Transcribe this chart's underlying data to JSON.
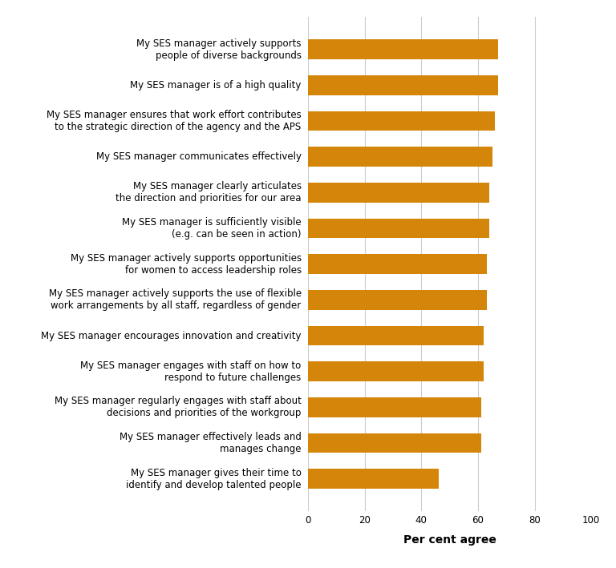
{
  "categories": [
    "My SES manager gives their time to\nidentify and develop talented people",
    "My SES manager effectively leads and\nmanages change",
    "My SES manager regularly engages with staff about\ndecisions and priorities of the workgroup",
    "My SES manager engages with staff on how to\nrespond to future challenges",
    "My SES manager encourages innovation and creativity",
    "My SES manager actively supports the use of flexible\nwork arrangements by all staff, regardless of gender",
    "My SES manager actively supports opportunities\nfor women to access leadership roles",
    "My SES manager is sufficiently visible\n(e.g. can be seen in action)",
    "My SES manager clearly articulates\nthe direction and priorities for our area",
    "My SES manager communicates effectively",
    "My SES manager ensures that work effort contributes\nto the strategic direction of the agency and the APS",
    "My SES manager is of a high quality",
    "My SES manager actively supports\npeople of diverse backgrounds"
  ],
  "values": [
    46,
    61,
    61,
    62,
    62,
    63,
    63,
    64,
    64,
    65,
    66,
    67,
    67
  ],
  "bar_color": "#D4860B",
  "xlabel": "Per cent agree",
  "xlim": [
    0,
    100
  ],
  "xticks": [
    0,
    20,
    40,
    60,
    80,
    100
  ],
  "background_color": "#ffffff",
  "grid_color": "#cccccc",
  "tick_label_fontsize": 8.5,
  "xlabel_fontsize": 10,
  "bar_height": 0.55
}
